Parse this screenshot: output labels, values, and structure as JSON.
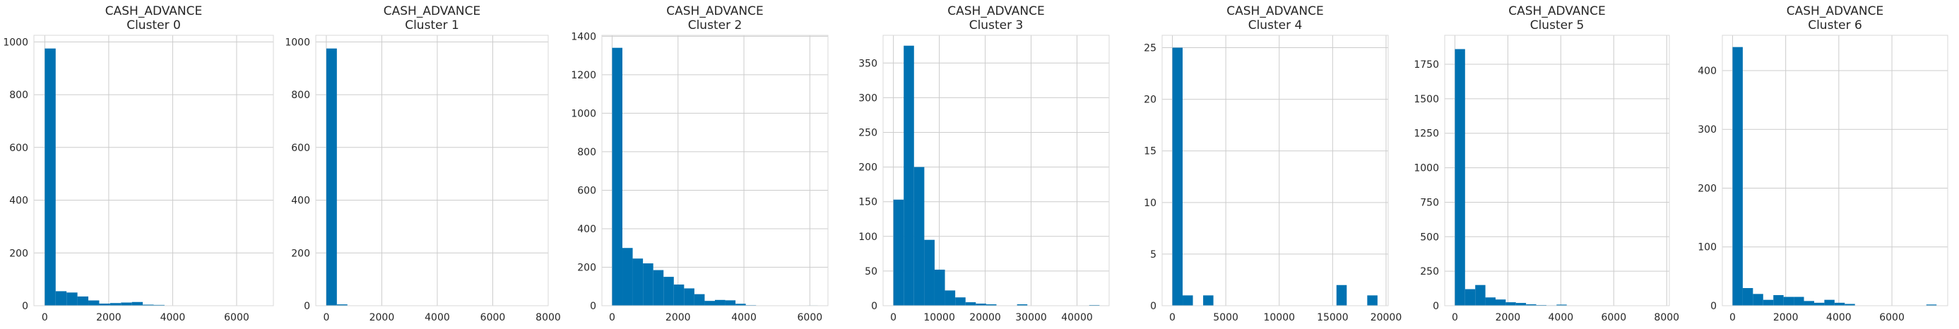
{
  "figure": {
    "bar_color": "#0072B2",
    "grid_color": "#cccccc",
    "spine_color": "#d9d9d9"
  },
  "chart_data": [
    {
      "type": "bar",
      "title": "CASH_ADVANCE",
      "subtitle": "Cluster 0",
      "xlim": [
        -340,
        7150
      ],
      "ylim": [
        0,
        1025
      ],
      "xticks": [
        0,
        2000,
        4000,
        6000
      ],
      "xtick_labels": [
        "0",
        "2000",
        "4000",
        "6000"
      ],
      "yticks": [
        0,
        200,
        400,
        600,
        800,
        1000
      ],
      "ytick_labels": [
        "0",
        "200",
        "400",
        "600",
        "800",
        "1000"
      ],
      "bin_start": 0,
      "bin_width": 340.5,
      "values": [
        975,
        55,
        50,
        35,
        20,
        8,
        10,
        12,
        14,
        4,
        3,
        0,
        0,
        0,
        0,
        0,
        0,
        0,
        0,
        1
      ]
    },
    {
      "type": "bar",
      "title": "CASH_ADVANCE",
      "subtitle": "Cluster 1",
      "xlim": [
        -380,
        8000
      ],
      "ylim": [
        0,
        1025
      ],
      "xticks": [
        0,
        2000,
        4000,
        6000,
        8000
      ],
      "xtick_labels": [
        "0",
        "2000",
        "4000",
        "6000",
        "8000"
      ],
      "yticks": [
        0,
        200,
        400,
        600,
        800,
        1000
      ],
      "ytick_labels": [
        "0",
        "200",
        "400",
        "600",
        "800",
        "1000"
      ],
      "bin_start": 0,
      "bin_width": 380,
      "values": [
        975,
        5,
        1,
        0,
        0,
        0,
        0,
        0,
        0,
        0,
        0,
        0,
        0,
        0,
        0,
        0,
        0,
        0,
        0,
        0
      ]
    },
    {
      "type": "bar",
      "title": "CASH_ADVANCE",
      "subtitle": "Cluster 2",
      "xlim": [
        -310,
        6550
      ],
      "ylim": [
        0,
        1405
      ],
      "xticks": [
        0,
        2000,
        4000,
        6000
      ],
      "xtick_labels": [
        "0",
        "2000",
        "4000",
        "6000"
      ],
      "yticks": [
        0,
        200,
        400,
        600,
        800,
        1000,
        1200,
        1400
      ],
      "ytick_labels": [
        "0",
        "200",
        "400",
        "600",
        "800",
        "1000",
        "1200",
        "1400"
      ],
      "bin_start": 0,
      "bin_width": 312,
      "values": [
        1340,
        300,
        245,
        220,
        185,
        150,
        110,
        90,
        60,
        25,
        30,
        28,
        10,
        3,
        0,
        0,
        0,
        0,
        0,
        2
      ]
    },
    {
      "type": "bar",
      "title": "CASH_ADVANCE",
      "subtitle": "Cluster 3",
      "xlim": [
        -2250,
        47000
      ],
      "ylim": [
        0,
        390
      ],
      "xticks": [
        0,
        10000,
        20000,
        30000,
        40000
      ],
      "xtick_labels": [
        "0",
        "10000",
        "20000",
        "30000",
        "40000"
      ],
      "yticks": [
        0,
        50,
        100,
        150,
        200,
        250,
        300,
        350
      ],
      "ytick_labels": [
        "0",
        "50",
        "100",
        "150",
        "200",
        "250",
        "300",
        "350"
      ],
      "bin_start": 0,
      "bin_width": 2245,
      "values": [
        153,
        375,
        200,
        95,
        52,
        22,
        12,
        5,
        3,
        2,
        0,
        0,
        2,
        0,
        0,
        0,
        0,
        0,
        0,
        1
      ]
    },
    {
      "type": "bar",
      "title": "CASH_ADVANCE",
      "subtitle": "Cluster 4",
      "xlim": [
        -960,
        20200
      ],
      "ylim": [
        0,
        26.2
      ],
      "xticks": [
        0,
        5000,
        10000,
        15000,
        20000
      ],
      "xtick_labels": [
        "0",
        "5000",
        "10000",
        "15000",
        "20000"
      ],
      "yticks": [
        0,
        5,
        10,
        15,
        20,
        25
      ],
      "ytick_labels": [
        "0",
        "5",
        "10",
        "15",
        "20",
        "25"
      ],
      "bin_start": 0,
      "bin_width": 960,
      "values": [
        25,
        1,
        0,
        1,
        0,
        0,
        0,
        0,
        0,
        0,
        0,
        0,
        0,
        0,
        0,
        0,
        2,
        0,
        0,
        1
      ]
    },
    {
      "type": "bar",
      "title": "CASH_ADVANCE",
      "subtitle": "Cluster 5",
      "xlim": [
        -385,
        8100
      ],
      "ylim": [
        0,
        1960
      ],
      "xticks": [
        0,
        2000,
        4000,
        6000,
        8000
      ],
      "xtick_labels": [
        "0",
        "2000",
        "4000",
        "6000",
        "8000"
      ],
      "yticks": [
        0,
        250,
        500,
        750,
        1000,
        1250,
        1500,
        1750
      ],
      "ytick_labels": [
        "0",
        "250",
        "500",
        "750",
        "1000",
        "1250",
        "1500",
        "1750"
      ],
      "bin_start": 0,
      "bin_width": 384,
      "values": [
        1860,
        120,
        150,
        60,
        45,
        25,
        20,
        10,
        5,
        3,
        8,
        2,
        0,
        0,
        0,
        0,
        0,
        0,
        0,
        1
      ]
    },
    {
      "type": "bar",
      "title": "CASH_ADVANCE",
      "subtitle": "Cluster 6",
      "xlim": [
        -385,
        8100
      ],
      "ylim": [
        0,
        460
      ],
      "xticks": [
        0,
        2000,
        4000,
        6000
      ],
      "xtick_labels": [
        "0",
        "2000",
        "4000",
        "6000"
      ],
      "yticks": [
        0,
        100,
        200,
        300,
        400
      ],
      "ytick_labels": [
        "0",
        "100",
        "200",
        "300",
        "400"
      ],
      "bin_start": 0,
      "bin_width": 384,
      "values": [
        440,
        30,
        20,
        10,
        18,
        15,
        15,
        8,
        5,
        10,
        5,
        3,
        0,
        0,
        0,
        0,
        0,
        0,
        0,
        2
      ]
    }
  ]
}
